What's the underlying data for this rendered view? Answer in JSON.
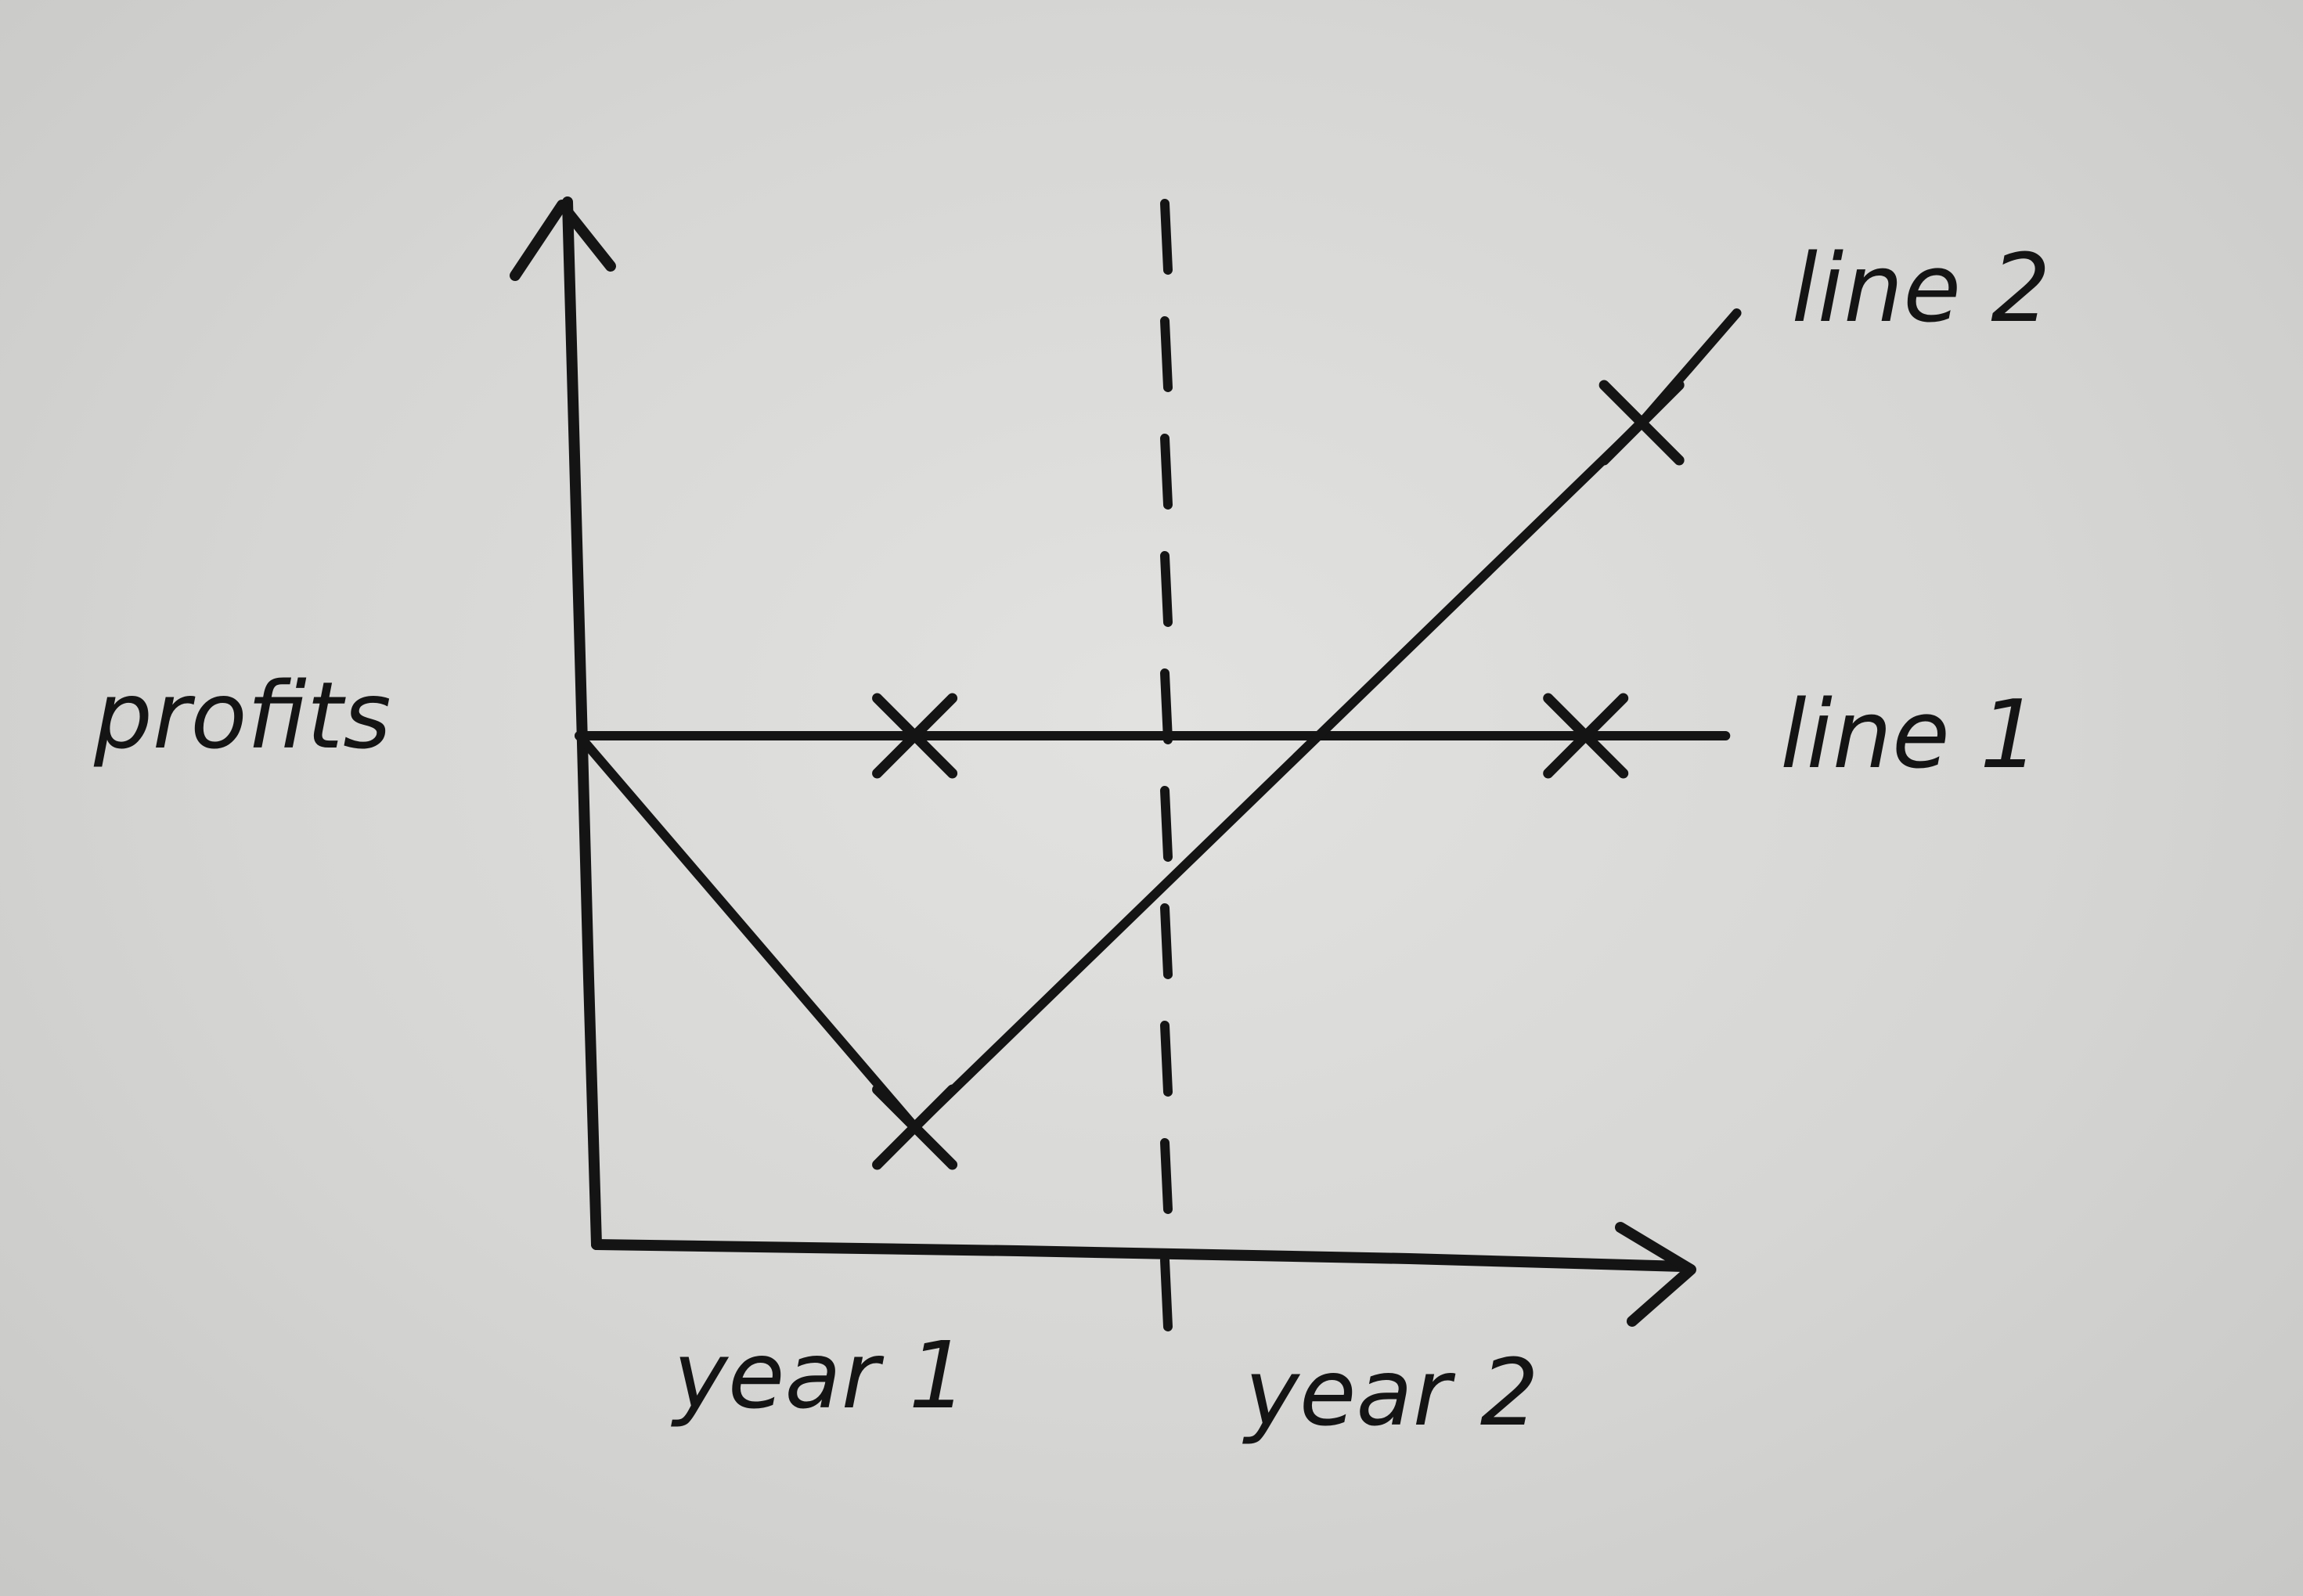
{
  "chart_data": {
    "type": "line",
    "title": "",
    "xlabel": "",
    "ylabel": "profits",
    "x_regions": [
      "year 1",
      "year 2"
    ],
    "divider": "dashed vertical line between year 1 and year 2",
    "series": [
      {
        "name": "line 1",
        "x": [
          0,
          0.6,
          1.8
        ],
        "values": [
          1,
          1,
          1
        ]
      },
      {
        "name": "line 2",
        "x": [
          0,
          0.6,
          1.9
        ],
        "values": [
          1,
          0,
          1.8
        ]
      }
    ],
    "x_range": [
      0,
      2.1
    ],
    "y_range": [
      -0.3,
      2.1
    ],
    "grid": false,
    "legend": "labels at line ends"
  }
}
